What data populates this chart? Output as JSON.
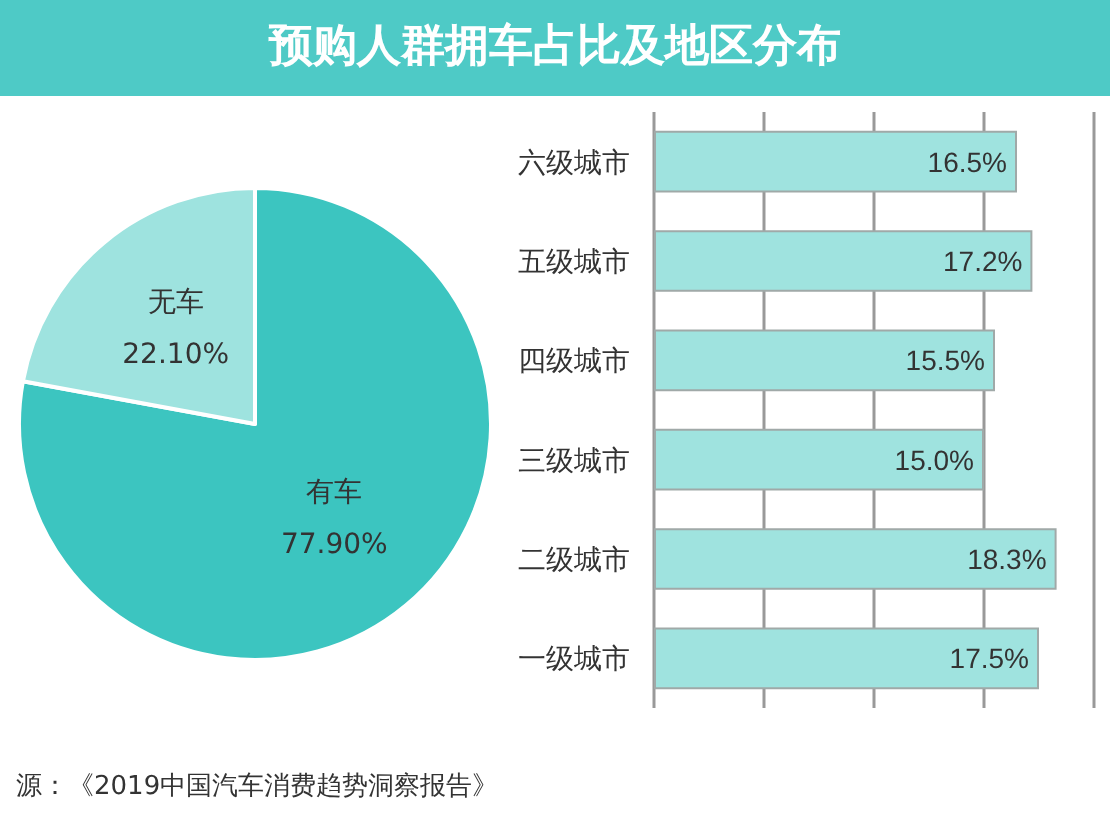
{
  "chart_data": [
    {
      "type": "pie",
      "title": "预购人群拥车占比及地区分布",
      "categories": [
        "有车",
        "无车"
      ],
      "values": [
        77.9,
        22.1
      ],
      "colors": [
        "#3cc5c0",
        "#9ee3df"
      ],
      "value_labels": [
        "77.90%",
        "22.10%"
      ]
    },
    {
      "type": "bar",
      "orientation": "horizontal",
      "categories": [
        "六级城市",
        "五级城市",
        "四级城市",
        "三级城市",
        "二级城市",
        "一级城市"
      ],
      "values": [
        16.5,
        17.2,
        15.5,
        15.0,
        18.3,
        17.5
      ],
      "color": "#9fe3df",
      "value_labels": [
        "16.5%",
        "17.2%",
        "15.5%",
        "15.0%",
        "18.3%",
        "17.5%"
      ],
      "xlim": [
        0,
        20
      ],
      "xticks": [
        {
          "value": 0,
          "label": null
        },
        {
          "value": 5,
          "label": null
        },
        {
          "value": 10,
          "label": null
        },
        {
          "value": 15,
          "label": null
        },
        {
          "value": 20,
          "label": null
        }
      ],
      "grid": "x",
      "annotations": [
        "源：《2019中国汽车消费趋势洞察报告》"
      ]
    }
  ]
}
